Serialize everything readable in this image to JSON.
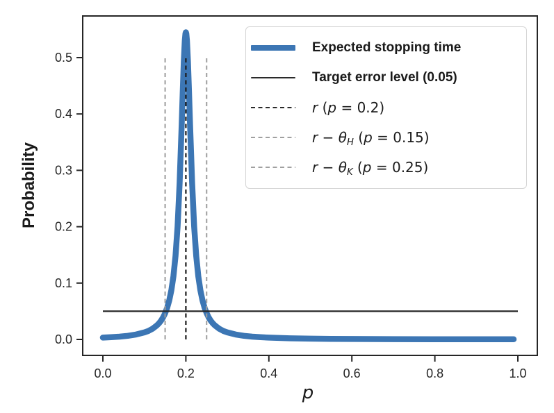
{
  "figure": {
    "background": "#ffffff",
    "axis_color": "#262626",
    "tick_label_color": "#262626"
  },
  "chart_data": {
    "type": "line",
    "title": "",
    "xlabel": "p",
    "ylabel": "Probability",
    "xlim": [
      -0.05,
      1.05
    ],
    "ylim": [
      -0.028,
      0.574
    ],
    "grid": false,
    "legend_position": "upper right",
    "x_ticks": [
      0.0,
      0.2,
      0.4,
      0.6,
      0.8,
      1.0
    ],
    "x_tick_labels": [
      "0.0",
      "0.2",
      "0.4",
      "0.6",
      "0.8",
      "1.0"
    ],
    "y_ticks": [
      0.0,
      0.1,
      0.2,
      0.3,
      0.4,
      0.5
    ],
    "y_tick_labels": [
      "0.0",
      "0.1",
      "0.2",
      "0.3",
      "0.4",
      "0.5"
    ],
    "series": [
      {
        "name": "Expected stopping time",
        "color": "#3c76b4",
        "line_width": 8.5,
        "style": "solid",
        "peak_x": 0.2,
        "peak_y": 0.545,
        "points": [
          [
            0.0,
            0.0032
          ],
          [
            0.02,
            0.0039
          ],
          [
            0.04,
            0.0049
          ],
          [
            0.06,
            0.0064
          ],
          [
            0.08,
            0.0087
          ],
          [
            0.1,
            0.0124
          ],
          [
            0.11,
            0.0152
          ],
          [
            0.12,
            0.0191
          ],
          [
            0.13,
            0.0247
          ],
          [
            0.135,
            0.0285
          ],
          [
            0.14,
            0.0331
          ],
          [
            0.145,
            0.039
          ],
          [
            0.15,
            0.0465
          ],
          [
            0.155,
            0.0562
          ],
          [
            0.16,
            0.0693
          ],
          [
            0.165,
            0.0871
          ],
          [
            0.17,
            0.112
          ],
          [
            0.175,
            0.148
          ],
          [
            0.18,
            0.2006
          ],
          [
            0.185,
            0.2772
          ],
          [
            0.19,
            0.3813
          ],
          [
            0.1925,
            0.4389
          ],
          [
            0.195,
            0.4922
          ],
          [
            0.1975,
            0.5308
          ],
          [
            0.199,
            0.5427
          ],
          [
            0.2,
            0.545
          ],
          [
            0.201,
            0.5427
          ],
          [
            0.2025,
            0.5308
          ],
          [
            0.205,
            0.4922
          ],
          [
            0.2075,
            0.4389
          ],
          [
            0.21,
            0.3813
          ],
          [
            0.215,
            0.2772
          ],
          [
            0.22,
            0.2006
          ],
          [
            0.225,
            0.148
          ],
          [
            0.23,
            0.112
          ],
          [
            0.235,
            0.0871
          ],
          [
            0.24,
            0.0693
          ],
          [
            0.245,
            0.0562
          ],
          [
            0.25,
            0.0465
          ],
          [
            0.255,
            0.039
          ],
          [
            0.26,
            0.0331
          ],
          [
            0.265,
            0.0285
          ],
          [
            0.27,
            0.0247
          ],
          [
            0.28,
            0.0191
          ],
          [
            0.29,
            0.0152
          ],
          [
            0.3,
            0.0124
          ],
          [
            0.32,
            0.0087
          ],
          [
            0.34,
            0.0064
          ],
          [
            0.36,
            0.0049
          ],
          [
            0.38,
            0.0039
          ],
          [
            0.4,
            0.0032
          ],
          [
            0.45,
            0.002
          ],
          [
            0.5,
            0.0014
          ],
          [
            0.55,
            0.001
          ],
          [
            0.6,
            0.0008
          ],
          [
            0.7,
            0.0005
          ],
          [
            0.8,
            0.0004
          ],
          [
            0.9,
            0.0003
          ],
          [
            0.99,
            0.0002
          ]
        ]
      }
    ],
    "reference_lines": {
      "horizontal": [
        {
          "name": "Target error level (0.05)",
          "y": 0.05,
          "x_start": 0.0,
          "x_end": 1.0,
          "color": "#242424",
          "style": "solid",
          "width": 2.2
        }
      ],
      "vertical": [
        {
          "name": "r (p = 0.2)",
          "x": 0.2,
          "y_start": 0.0,
          "y_end": 0.5,
          "color": "#1c1c1c",
          "style": "dashed",
          "width": 2.2
        },
        {
          "name": "r − θH (p = 0.15)",
          "x": 0.15,
          "y_start": 0.0,
          "y_end": 0.5,
          "color": "#9d9d9d",
          "style": "dashed",
          "width": 2
        },
        {
          "name": "r − θK (p = 0.25)",
          "x": 0.25,
          "y_start": 0.0,
          "y_end": 0.5,
          "color": "#9d9d9d",
          "style": "dashed",
          "width": 2
        }
      ]
    }
  },
  "legend": {
    "entries": [
      {
        "swatch": {
          "color": "#3c76b4",
          "thickness": 8,
          "dash": "solid"
        },
        "math": false,
        "segments": [
          {
            "t": "Expected stopping time"
          }
        ]
      },
      {
        "swatch": {
          "color": "#2a2a2a",
          "thickness": 2,
          "dash": "solid"
        },
        "math": false,
        "segments": [
          {
            "t": "Target error level (0.05)"
          }
        ]
      },
      {
        "swatch": {
          "color": "#2a2a2a",
          "thickness": 2,
          "dash": "dashed"
        },
        "math": true,
        "segments": [
          {
            "t": "r",
            "i": true
          },
          {
            "t": " ("
          },
          {
            "t": "p",
            "i": true
          },
          {
            "t": " = 0.2)"
          }
        ]
      },
      {
        "swatch": {
          "color": "#a0a0a0",
          "thickness": 2,
          "dash": "dashed"
        },
        "math": true,
        "segments": [
          {
            "t": "r",
            "i": true
          },
          {
            "t": " − "
          },
          {
            "t": "θ",
            "i": true
          },
          {
            "t": "H",
            "sub": true
          },
          {
            "t": " ("
          },
          {
            "t": "p",
            "i": true
          },
          {
            "t": " = 0.15)"
          }
        ]
      },
      {
        "swatch": {
          "color": "#a0a0a0",
          "thickness": 2,
          "dash": "dashed"
        },
        "math": true,
        "segments": [
          {
            "t": "r",
            "i": true
          },
          {
            "t": " − "
          },
          {
            "t": "θ",
            "i": true
          },
          {
            "t": "K",
            "sub": true
          },
          {
            "t": " ("
          },
          {
            "t": "p",
            "i": true
          },
          {
            "t": " = 0.25)"
          }
        ]
      }
    ]
  }
}
